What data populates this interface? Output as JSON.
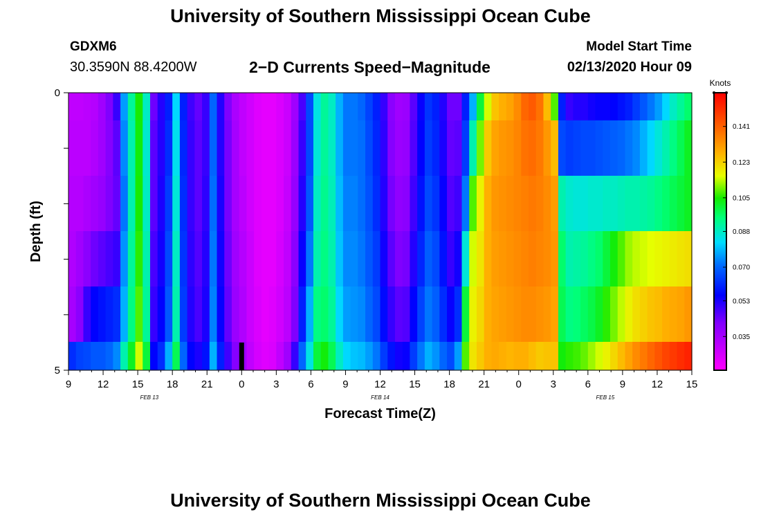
{
  "header": {
    "title_top": "University of Southern Mississippi Ocean Cube",
    "station": "GDXM6",
    "coordinates": "30.3590N 88.4200W",
    "subtitle": "2−D Currents Speed−Magnitude",
    "model_start_label": "Model Start Time",
    "model_start_value": "02/13/2020 Hour 09",
    "title_bottom": "University of Southern Mississippi Ocean Cube"
  },
  "chart_data": {
    "type": "heatmap",
    "xlabel": "Forecast Time(Z)",
    "ylabel": "Depth (ft)",
    "x_ticks": [
      "9",
      "12",
      "15",
      "18",
      "21",
      "0",
      "3",
      "6",
      "9",
      "12",
      "15",
      "18",
      "21",
      "0",
      "3",
      "6",
      "9",
      "12",
      "15"
    ],
    "x_range_hours": [
      0,
      54
    ],
    "date_labels": [
      {
        "label": "FEB 13",
        "hour": 7
      },
      {
        "label": "FEB 14",
        "hour": 27
      },
      {
        "label": "FEB 15",
        "hour": 46.5
      }
    ],
    "y_ticks": [
      "0",
      "5"
    ],
    "ylim": [
      5,
      0
    ],
    "depth_levels": 5,
    "colorbar": {
      "unit": "Knots",
      "ticks": [
        0.035,
        0.053,
        0.07,
        0.088,
        0.105,
        0.123,
        0.141
      ],
      "tick_labels": [
        "0.035",
        "0.053",
        "0.070",
        "0.088",
        "0.105",
        "0.123",
        "0.141"
      ],
      "range": [
        0.018,
        0.158
      ]
    },
    "column_values_knots": [
      [
        0.03,
        0.031,
        0.032,
        0.033,
        0.035,
        0.062
      ],
      [
        0.03,
        0.031,
        0.032,
        0.036,
        0.04,
        0.065
      ],
      [
        0.031,
        0.031,
        0.034,
        0.04,
        0.05,
        0.066
      ],
      [
        0.032,
        0.033,
        0.036,
        0.044,
        0.056,
        0.068
      ],
      [
        0.036,
        0.036,
        0.038,
        0.046,
        0.058,
        0.068
      ],
      [
        0.042,
        0.041,
        0.042,
        0.048,
        0.06,
        0.07
      ],
      [
        0.05,
        0.046,
        0.045,
        0.05,
        0.062,
        0.074
      ],
      [
        0.076,
        0.074,
        0.072,
        0.075,
        0.078,
        0.09
      ],
      [
        0.092,
        0.09,
        0.09,
        0.092,
        0.094,
        0.102
      ],
      [
        0.105,
        0.104,
        0.105,
        0.106,
        0.108,
        0.115
      ],
      [
        0.088,
        0.087,
        0.088,
        0.09,
        0.092,
        0.1
      ],
      [
        0.044,
        0.046,
        0.046,
        0.048,
        0.05,
        0.056
      ],
      [
        0.052,
        0.052,
        0.053,
        0.054,
        0.056,
        0.062
      ],
      [
        0.06,
        0.062,
        0.064,
        0.066,
        0.068,
        0.078
      ],
      [
        0.082,
        0.084,
        0.086,
        0.088,
        0.09,
        0.098
      ],
      [
        0.06,
        0.061,
        0.062,
        0.063,
        0.064,
        0.07
      ],
      [
        0.049,
        0.05,
        0.05,
        0.051,
        0.052,
        0.056
      ],
      [
        0.045,
        0.046,
        0.046,
        0.047,
        0.048,
        0.053
      ],
      [
        0.05,
        0.05,
        0.051,
        0.052,
        0.053,
        0.058
      ],
      [
        0.07,
        0.07,
        0.071,
        0.072,
        0.073,
        0.078
      ],
      [
        0.052,
        0.052,
        0.053,
        0.054,
        0.055,
        0.06
      ],
      [
        0.042,
        0.043,
        0.043,
        0.044,
        0.045,
        0.049
      ],
      [
        0.034,
        0.035,
        0.035,
        0.036,
        0.037,
        0.041
      ],
      [
        0.03,
        0.03,
        0.031,
        0.032,
        0.033,
        0.036
      ],
      [
        0.027,
        0.027,
        0.027,
        0.028,
        0.028,
        0.03
      ],
      [
        0.024,
        0.024,
        0.024,
        0.024,
        0.025,
        0.026
      ],
      [
        0.023,
        0.023,
        0.023,
        0.023,
        0.023,
        0.024
      ],
      [
        0.023,
        0.023,
        0.023,
        0.023,
        0.024,
        0.025
      ],
      [
        0.025,
        0.025,
        0.025,
        0.026,
        0.027,
        0.03
      ],
      [
        0.028,
        0.028,
        0.029,
        0.03,
        0.031,
        0.036
      ],
      [
        0.036,
        0.037,
        0.038,
        0.04,
        0.042,
        0.05
      ],
      [
        0.048,
        0.05,
        0.052,
        0.055,
        0.06,
        0.07
      ],
      [
        0.066,
        0.066,
        0.068,
        0.072,
        0.078,
        0.085
      ],
      [
        0.085,
        0.086,
        0.088,
        0.09,
        0.094,
        0.1
      ],
      [
        0.092,
        0.092,
        0.093,
        0.094,
        0.096,
        0.104
      ],
      [
        0.088,
        0.088,
        0.089,
        0.09,
        0.092,
        0.098
      ],
      [
        0.078,
        0.078,
        0.079,
        0.08,
        0.082,
        0.088
      ],
      [
        0.072,
        0.072,
        0.073,
        0.074,
        0.076,
        0.082
      ],
      [
        0.072,
        0.072,
        0.073,
        0.074,
        0.075,
        0.08
      ],
      [
        0.07,
        0.071,
        0.071,
        0.072,
        0.074,
        0.079
      ],
      [
        0.065,
        0.066,
        0.067,
        0.068,
        0.07,
        0.076
      ],
      [
        0.06,
        0.061,
        0.062,
        0.064,
        0.066,
        0.072
      ],
      [
        0.05,
        0.051,
        0.052,
        0.054,
        0.057,
        0.064
      ],
      [
        0.04,
        0.041,
        0.043,
        0.046,
        0.05,
        0.058
      ],
      [
        0.036,
        0.037,
        0.039,
        0.042,
        0.046,
        0.054
      ],
      [
        0.037,
        0.038,
        0.04,
        0.043,
        0.047,
        0.055
      ],
      [
        0.046,
        0.047,
        0.049,
        0.052,
        0.056,
        0.064
      ],
      [
        0.055,
        0.056,
        0.058,
        0.061,
        0.065,
        0.072
      ],
      [
        0.063,
        0.064,
        0.066,
        0.069,
        0.072,
        0.078
      ],
      [
        0.06,
        0.061,
        0.063,
        0.066,
        0.069,
        0.075
      ],
      [
        0.052,
        0.053,
        0.055,
        0.058,
        0.062,
        0.07
      ],
      [
        0.044,
        0.045,
        0.047,
        0.05,
        0.055,
        0.066
      ],
      [
        0.044,
        0.046,
        0.049,
        0.054,
        0.062,
        0.076
      ],
      [
        0.06,
        0.064,
        0.072,
        0.086,
        0.1,
        0.108
      ],
      [
        0.078,
        0.09,
        0.108,
        0.115,
        0.118,
        0.12
      ],
      [
        0.1,
        0.11,
        0.118,
        0.12,
        0.122,
        0.124
      ],
      [
        0.115,
        0.124,
        0.128,
        0.128,
        0.128,
        0.128
      ],
      [
        0.125,
        0.13,
        0.132,
        0.131,
        0.13,
        0.129
      ],
      [
        0.128,
        0.132,
        0.133,
        0.132,
        0.131,
        0.128
      ],
      [
        0.13,
        0.133,
        0.134,
        0.133,
        0.132,
        0.127
      ],
      [
        0.134,
        0.135,
        0.135,
        0.134,
        0.133,
        0.128
      ],
      [
        0.14,
        0.138,
        0.136,
        0.135,
        0.134,
        0.128
      ],
      [
        0.142,
        0.139,
        0.137,
        0.136,
        0.134,
        0.126
      ],
      [
        0.138,
        0.137,
        0.136,
        0.135,
        0.133,
        0.124
      ],
      [
        0.126,
        0.132,
        0.134,
        0.134,
        0.132,
        0.125
      ],
      [
        0.108,
        0.126,
        0.131,
        0.132,
        0.13,
        0.125
      ],
      [
        0.06,
        0.066,
        0.09,
        0.096,
        0.098,
        0.104
      ],
      [
        0.05,
        0.064,
        0.087,
        0.09,
        0.094,
        0.106
      ],
      [
        0.052,
        0.065,
        0.086,
        0.091,
        0.095,
        0.107
      ],
      [
        0.052,
        0.066,
        0.086,
        0.092,
        0.097,
        0.109
      ],
      [
        0.054,
        0.066,
        0.087,
        0.094,
        0.099,
        0.112
      ],
      [
        0.055,
        0.067,
        0.087,
        0.096,
        0.102,
        0.115
      ],
      [
        0.055,
        0.068,
        0.088,
        0.1,
        0.106,
        0.118
      ],
      [
        0.056,
        0.069,
        0.088,
        0.104,
        0.11,
        0.122
      ],
      [
        0.058,
        0.07,
        0.089,
        0.108,
        0.114,
        0.126
      ],
      [
        0.06,
        0.072,
        0.09,
        0.112,
        0.118,
        0.13
      ],
      [
        0.064,
        0.074,
        0.09,
        0.114,
        0.121,
        0.134
      ],
      [
        0.068,
        0.078,
        0.091,
        0.115,
        0.123,
        0.137
      ],
      [
        0.072,
        0.082,
        0.092,
        0.116,
        0.125,
        0.14
      ],
      [
        0.076,
        0.086,
        0.094,
        0.117,
        0.126,
        0.143
      ],
      [
        0.082,
        0.09,
        0.096,
        0.118,
        0.128,
        0.146
      ],
      [
        0.088,
        0.094,
        0.098,
        0.119,
        0.129,
        0.148
      ],
      [
        0.092,
        0.098,
        0.1,
        0.12,
        0.13,
        0.15
      ],
      [
        0.096,
        0.102,
        0.102,
        0.121,
        0.132,
        0.152
      ]
    ]
  }
}
